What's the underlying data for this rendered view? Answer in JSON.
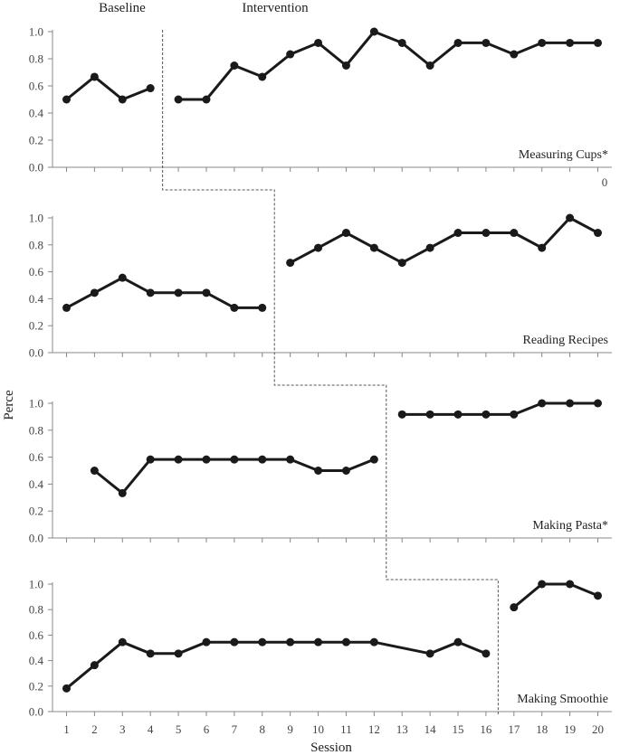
{
  "chart_data": {
    "type": "line",
    "header_labels": {
      "baseline": "Baseline",
      "intervention": "Intervention"
    },
    "ylabel": "Perce",
    "xlabel": "Session",
    "x": [
      1,
      2,
      3,
      4,
      5,
      6,
      7,
      8,
      9,
      10,
      11,
      12,
      13,
      14,
      15,
      16,
      17,
      18,
      19,
      20
    ],
    "ylim": [
      0,
      1.0
    ],
    "yticks": [
      "0.0",
      "0.2",
      "0.4",
      "0.6",
      "0.8",
      "1.0"
    ],
    "stray_text": "0",
    "colors": {
      "line": "#1a1a1a",
      "axis": "#888888",
      "tick_text": "#444444",
      "phase_line": "#555555"
    },
    "panels": [
      {
        "name": "Measuring Cups*",
        "phase_after_session": 4.5,
        "segments": [
          [
            [
              1,
              0.5
            ],
            [
              2,
              0.667
            ],
            [
              3,
              0.5
            ],
            [
              4,
              0.583
            ]
          ],
          [
            [
              5,
              0.5
            ],
            [
              6,
              0.5
            ],
            [
              7,
              0.75
            ],
            [
              8,
              0.667
            ],
            [
              9,
              0.833
            ],
            [
              10,
              0.917
            ],
            [
              11,
              0.75
            ],
            [
              12,
              1.0
            ],
            [
              13,
              0.917
            ],
            [
              14,
              0.75
            ],
            [
              15,
              0.917
            ],
            [
              16,
              0.917
            ],
            [
              17,
              0.833
            ],
            [
              18,
              0.917
            ],
            [
              19,
              0.917
            ],
            [
              20,
              0.917
            ]
          ]
        ]
      },
      {
        "name": "Reading Recipes",
        "phase_after_session": 8.5,
        "segments": [
          [
            [
              1,
              0.333
            ],
            [
              2,
              0.444
            ],
            [
              3,
              0.556
            ],
            [
              4,
              0.444
            ],
            [
              5,
              0.444
            ],
            [
              6,
              0.444
            ],
            [
              7,
              0.333
            ],
            [
              8,
              0.333
            ]
          ],
          [
            [
              9,
              0.667
            ],
            [
              10,
              0.778
            ],
            [
              11,
              0.889
            ],
            [
              12,
              0.778
            ],
            [
              13,
              0.667
            ],
            [
              14,
              0.778
            ],
            [
              15,
              0.889
            ],
            [
              16,
              0.889
            ],
            [
              17,
              0.889
            ],
            [
              18,
              0.778
            ],
            [
              19,
              1.0
            ],
            [
              20,
              0.889
            ]
          ]
        ]
      },
      {
        "name": "Making Pasta*",
        "phase_after_session": 12.5,
        "segments": [
          [
            [
              2,
              0.5
            ],
            [
              3,
              0.333
            ],
            [
              4,
              0.583
            ],
            [
              5,
              0.583
            ],
            [
              6,
              0.583
            ],
            [
              7,
              0.583
            ],
            [
              8,
              0.583
            ],
            [
              9,
              0.583
            ],
            [
              10,
              0.5
            ],
            [
              11,
              0.5
            ],
            [
              12,
              0.583
            ]
          ],
          [
            [
              13,
              0.917
            ],
            [
              14,
              0.917
            ],
            [
              15,
              0.917
            ],
            [
              16,
              0.917
            ],
            [
              17,
              0.917
            ],
            [
              18,
              1.0
            ],
            [
              19,
              1.0
            ],
            [
              20,
              1.0
            ]
          ]
        ]
      },
      {
        "name": "Making Smoothie",
        "phase_after_session": 16.5,
        "segments": [
          [
            [
              1,
              0.182
            ],
            [
              2,
              0.364
            ],
            [
              3,
              0.545
            ],
            [
              4,
              0.455
            ],
            [
              5,
              0.455
            ],
            [
              6,
              0.545
            ],
            [
              7,
              0.545
            ],
            [
              8,
              0.545
            ],
            [
              9,
              0.545
            ],
            [
              10,
              0.545
            ],
            [
              11,
              0.545
            ],
            [
              12,
              0.545
            ],
            [
              14,
              0.455
            ],
            [
              15,
              0.545
            ],
            [
              16,
              0.455
            ]
          ],
          [
            [
              17,
              0.818
            ],
            [
              18,
              1.0
            ],
            [
              19,
              1.0
            ],
            [
              20,
              0.909
            ]
          ]
        ]
      }
    ]
  }
}
